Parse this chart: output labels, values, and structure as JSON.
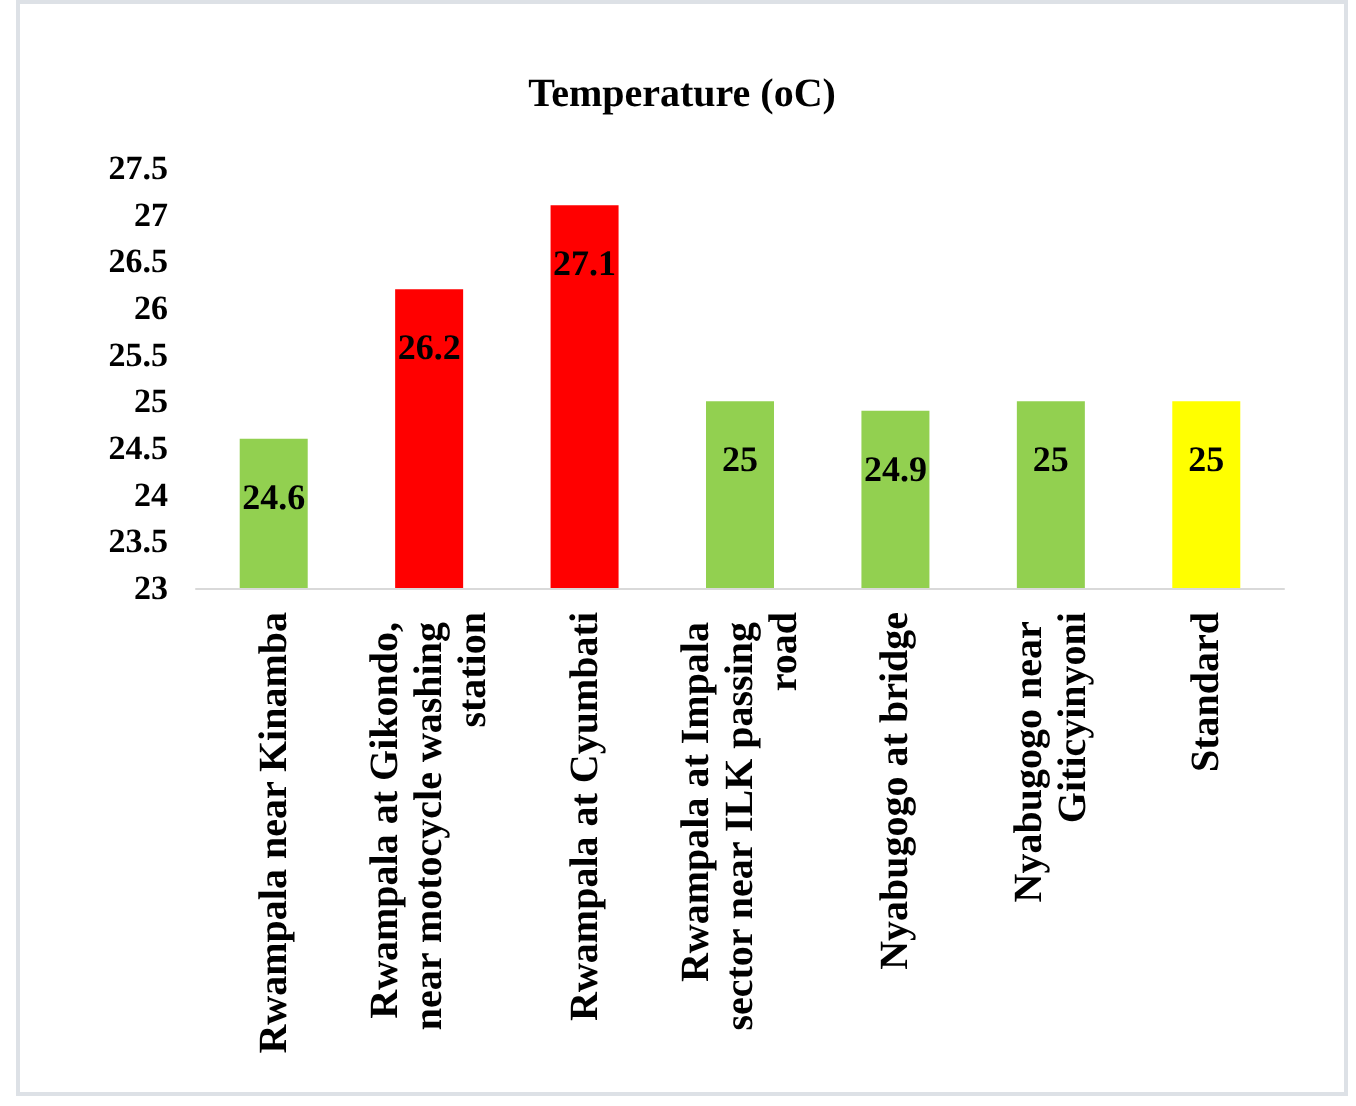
{
  "chart_data": {
    "type": "bar",
    "title": "Temperature (oC)",
    "categories": [
      "Rwampala near Kinamba",
      "Rwampala at Gikondo, near motocycle washing station",
      "Rwampala at Cyumbati",
      "Rwampala at Impala sector near ILK passing road",
      "Nyabugogo at bridge",
      "Nyabugogo near Giticyinyoni",
      "Standard"
    ],
    "values": [
      24.6,
      26.2,
      27.1,
      25,
      24.9,
      25,
      25
    ],
    "colors": [
      "#92d050",
      "#ff0000",
      "#ff0000",
      "#92d050",
      "#92d050",
      "#92d050",
      "#ffff00"
    ],
    "ylim": [
      23,
      27.5
    ],
    "yticks": [
      23,
      23.5,
      24,
      24.5,
      25,
      25.5,
      26,
      26.5,
      27,
      27.5
    ],
    "data_labels": true
  }
}
